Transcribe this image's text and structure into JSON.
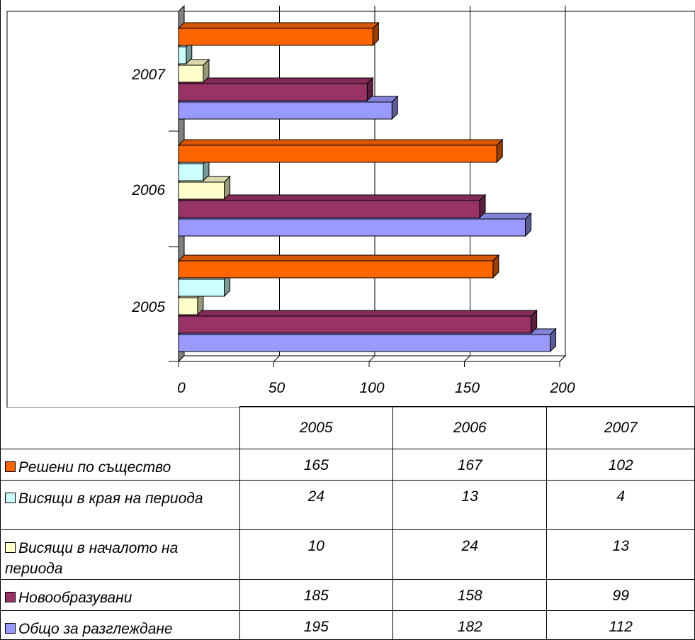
{
  "chart_data": {
    "type": "bar",
    "orientation": "horizontal",
    "three_d": true,
    "categories": [
      "2005",
      "2006",
      "2007"
    ],
    "xlim": [
      0,
      200
    ],
    "xticks": [
      "0",
      "50",
      "100",
      "150",
      "200"
    ],
    "grid": true,
    "series": [
      {
        "name": "Решени по същество",
        "values": [
          165,
          167,
          102
        ],
        "color": "#ff6600"
      },
      {
        "name": "Висящи в края на периода",
        "values": [
          24,
          13,
          4
        ],
        "color": "#ccffff"
      },
      {
        "name": "Висящи в началото на периода",
        "values": [
          10,
          24,
          13
        ],
        "color": "#ffffcc"
      },
      {
        "name": "Новообразувани",
        "values": [
          185,
          158,
          99
        ],
        "color": "#993366"
      },
      {
        "name": "Общо за разглеждане",
        "values": [
          195,
          182,
          112
        ],
        "color": "#9999ff"
      }
    ]
  }
}
